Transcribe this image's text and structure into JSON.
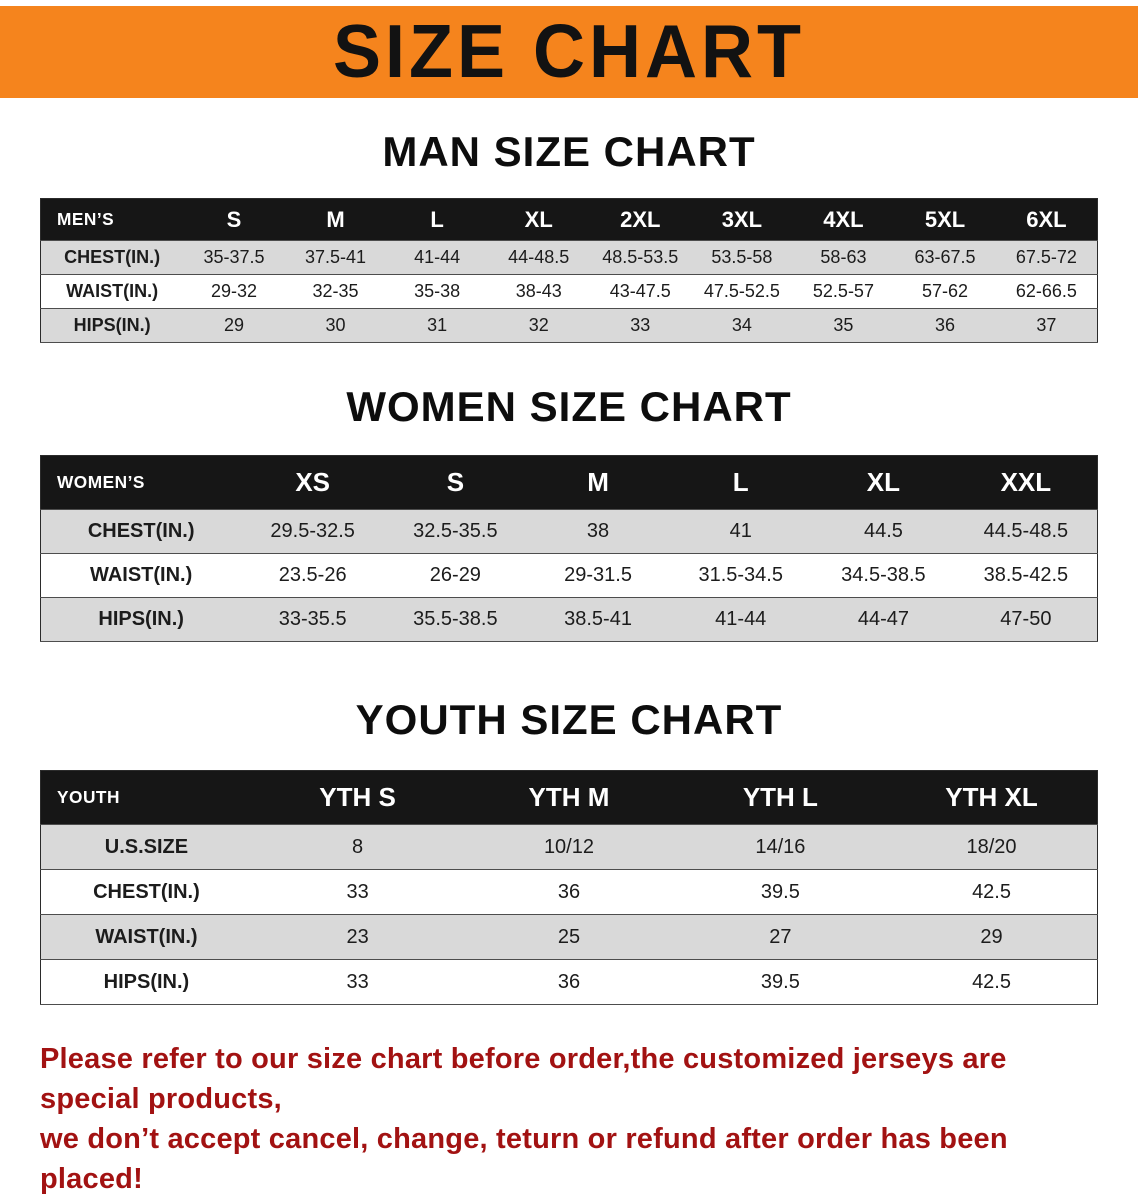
{
  "banner": {
    "title": "SIZE CHART"
  },
  "colors": {
    "banner_bg": "#F5841D",
    "header_bg": "#161616",
    "row_stripe": "#d9d9d9",
    "note_red": "#A21212"
  },
  "sections": [
    {
      "id": "men",
      "heading": "MAN SIZE CHART",
      "table": {
        "header": [
          "MEN’S",
          "S",
          "M",
          "L",
          "XL",
          "2XL",
          "3XL",
          "4XL",
          "5XL",
          "6XL"
        ],
        "rows": [
          [
            "CHEST(IN.)",
            "35-37.5",
            "37.5-41",
            "41-44",
            "44-48.5",
            "48.5-53.5",
            "53.5-58",
            "58-63",
            "63-67.5",
            "67.5-72"
          ],
          [
            "WAIST(IN.)",
            "29-32",
            "32-35",
            "35-38",
            "38-43",
            "43-47.5",
            "47.5-52.5",
            "52.5-57",
            "57-62",
            "62-66.5"
          ],
          [
            "HIPS(IN.)",
            "29",
            "30",
            "31",
            "32",
            "33",
            "34",
            "35",
            "36",
            "37"
          ]
        ]
      }
    },
    {
      "id": "women",
      "heading": "WOMEN SIZE CHART",
      "table": {
        "header": [
          "WOMEN’S",
          "XS",
          "S",
          "M",
          "L",
          "XL",
          "XXL"
        ],
        "rows": [
          [
            "CHEST(IN.)",
            "29.5-32.5",
            "32.5-35.5",
            "38",
            "41",
            "44.5",
            "44.5-48.5"
          ],
          [
            "WAIST(IN.)",
            "23.5-26",
            "26-29",
            "29-31.5",
            "31.5-34.5",
            "34.5-38.5",
            "38.5-42.5"
          ],
          [
            "HIPS(IN.)",
            "33-35.5",
            "35.5-38.5",
            "38.5-41",
            "41-44",
            "44-47",
            "47-50"
          ]
        ]
      }
    },
    {
      "id": "youth",
      "heading": "YOUTH SIZE CHART",
      "table": {
        "header": [
          "YOUTH",
          "YTH S",
          "YTH M",
          "YTH L",
          "YTH XL"
        ],
        "rows": [
          [
            "U.S.SIZE",
            "8",
            "10/12",
            "14/16",
            "18/20"
          ],
          [
            "CHEST(IN.)",
            "33",
            "36",
            "39.5",
            "42.5"
          ],
          [
            "WAIST(IN.)",
            "23",
            "25",
            "27",
            "29"
          ],
          [
            "HIPS(IN.)",
            "33",
            "36",
            "39.5",
            "42.5"
          ]
        ]
      }
    }
  ],
  "note": {
    "line1": "Please refer to our size chart before order,the customized jerseys are special products,",
    "line2": "we don’t accept cancel, change, teturn or refund after order has been placed!"
  }
}
